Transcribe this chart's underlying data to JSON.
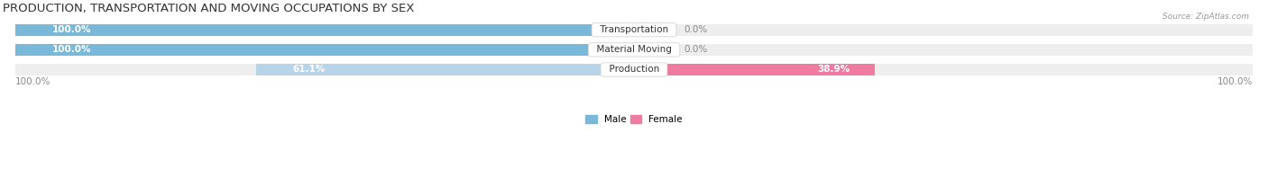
{
  "title": "PRODUCTION, TRANSPORTATION AND MOVING OCCUPATIONS BY SEX",
  "source": "Source: ZipAtlas.com",
  "categories": [
    "Transportation",
    "Material Moving",
    "Production"
  ],
  "male_values": [
    100.0,
    100.0,
    61.1
  ],
  "female_values": [
    0.0,
    0.0,
    38.9
  ],
  "male_color_strong": "#7ab8d9",
  "male_color_light": "#b8d4e8",
  "female_color_strong": "#f07ba0",
  "female_color_light": "#f5b8cc",
  "bar_bg_color": "#eeeeee",
  "male_label": "Male",
  "female_label": "Female",
  "title_fontsize": 9.5,
  "label_fontsize": 7.5,
  "bar_height": 0.58,
  "figsize": [
    14.06,
    1.97
  ],
  "dpi": 100,
  "axis_label_color": "#888888",
  "source_color": "#999999",
  "category_label_fontsize": 7.5
}
